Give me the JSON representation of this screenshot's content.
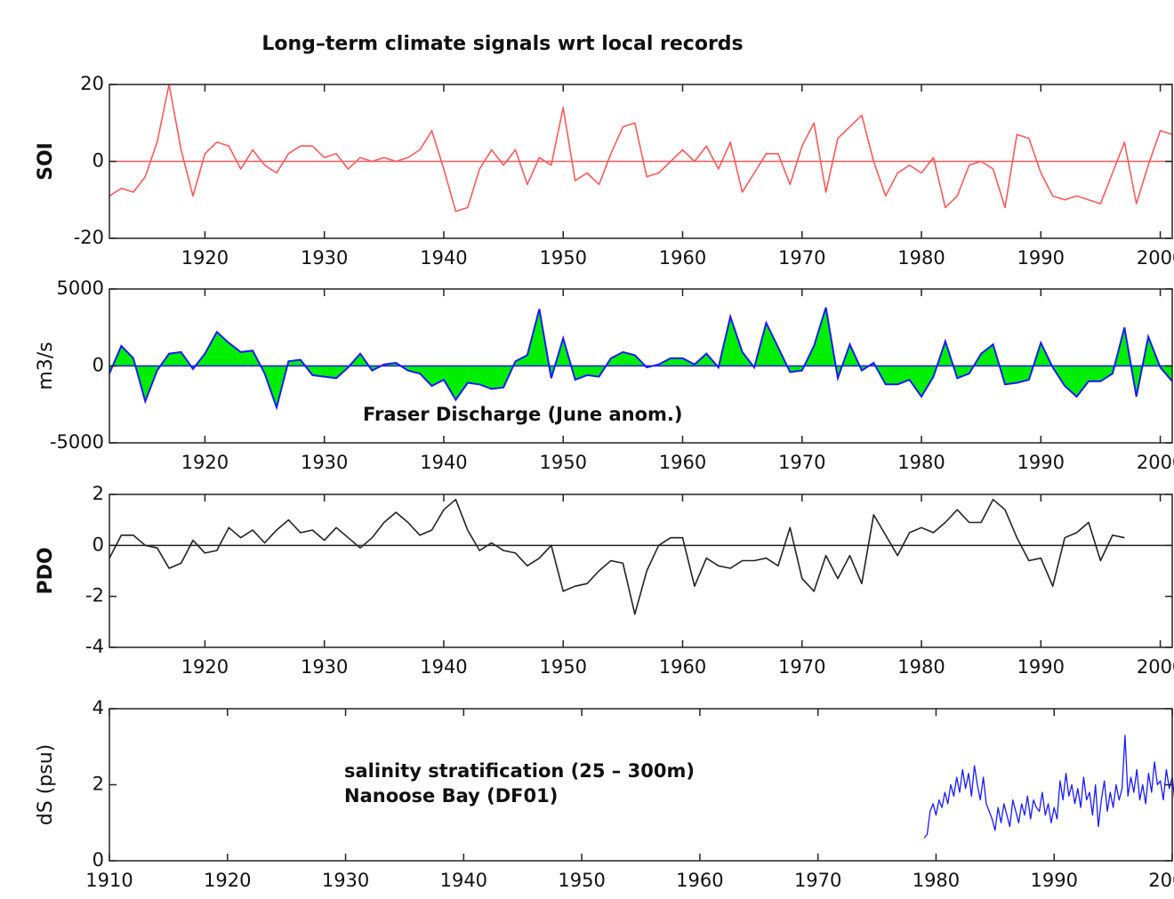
{
  "chart_data": [
    {
      "type": "line",
      "title": "Long–term climate signals wrt local records",
      "ylabel": "SOI",
      "color": "#ff5a5a",
      "zero_line": true,
      "x": [
        1912,
        1913,
        1914,
        1915,
        1916,
        1917,
        1918,
        1919,
        1920,
        1921,
        1922,
        1923,
        1924,
        1925,
        1926,
        1927,
        1928,
        1929,
        1930,
        1931,
        1932,
        1933,
        1934,
        1935,
        1936,
        1937,
        1938,
        1939,
        1940,
        1941,
        1942,
        1943,
        1944,
        1945,
        1946,
        1947,
        1948,
        1949,
        1950,
        1951,
        1952,
        1953,
        1954,
        1955,
        1956,
        1957,
        1958,
        1959,
        1960,
        1961,
        1962,
        1963,
        1964,
        1965,
        1966,
        1967,
        1968,
        1969,
        1970,
        1971,
        1972,
        1973,
        1974,
        1975,
        1976,
        1977,
        1978,
        1979,
        1980,
        1981,
        1982,
        1983,
        1984,
        1985,
        1986,
        1987,
        1988,
        1989,
        1990,
        1991,
        1992,
        1993,
        1994,
        1995,
        1996,
        1997,
        1998,
        1999,
        2000,
        2001
      ],
      "values": [
        -9,
        -7,
        -8,
        -4,
        5,
        20,
        3,
        -9,
        2,
        5,
        4,
        -2,
        3,
        -1,
        -3,
        2,
        4,
        4,
        1,
        2,
        -2,
        1,
        0,
        1,
        0,
        1,
        3,
        8,
        -2,
        -13,
        -12,
        -2,
        3,
        -1,
        3,
        -6,
        1,
        -1,
        14,
        -5,
        -3,
        -6,
        2,
        9,
        10,
        -4,
        -3,
        0,
        3,
        0,
        4,
        -2,
        5,
        -8,
        -3,
        2,
        2,
        -6,
        4,
        10,
        -8,
        6,
        9,
        12,
        0,
        -9,
        -3,
        -1,
        -3,
        1,
        -12,
        -9,
        -1,
        0,
        -2,
        -12,
        7,
        6,
        -3,
        -9,
        -10,
        -9,
        -10,
        -11,
        -3,
        5,
        -11,
        -1,
        8,
        7
      ],
      "xlim": [
        1912,
        2001
      ],
      "xticks": [
        1920,
        1930,
        1940,
        1950,
        1960,
        1970,
        1980,
        1990,
        2000
      ],
      "ylim": [
        -20,
        20
      ],
      "yticks": [
        -20,
        0,
        20
      ]
    },
    {
      "type": "area",
      "ylabel": "m3/s",
      "color": "#00ee00",
      "line_color": "#1a1aff",
      "annotations": [
        "Fraser Discharge (June anom.)"
      ],
      "x": [
        1912,
        1913,
        1914,
        1915,
        1916,
        1917,
        1918,
        1919,
        1920,
        1921,
        1922,
        1923,
        1924,
        1925,
        1926,
        1927,
        1928,
        1929,
        1930,
        1931,
        1932,
        1933,
        1934,
        1935,
        1936,
        1937,
        1938,
        1939,
        1940,
        1941,
        1942,
        1943,
        1944,
        1945,
        1946,
        1947,
        1948,
        1949,
        1950,
        1951,
        1952,
        1953,
        1954,
        1955,
        1956,
        1957,
        1958,
        1959,
        1960,
        1961,
        1962,
        1963,
        1964,
        1965,
        1966,
        1967,
        1968,
        1969,
        1970,
        1971,
        1972,
        1973,
        1974,
        1975,
        1976,
        1977,
        1978,
        1979,
        1980,
        1981,
        1982,
        1983,
        1984,
        1985,
        1986,
        1987,
        1988,
        1989,
        1990,
        1991,
        1992,
        1993,
        1994,
        1995,
        1996,
        1997,
        1998,
        1999,
        2000,
        2001
      ],
      "values": [
        -500,
        1300,
        500,
        -2300,
        -300,
        800,
        900,
        -200,
        800,
        2200,
        1500,
        900,
        1000,
        -500,
        -2700,
        300,
        400,
        -600,
        -700,
        -800,
        -100,
        800,
        -300,
        100,
        200,
        -300,
        -500,
        -1300,
        -900,
        -2200,
        -1100,
        -1200,
        -1500,
        -1400,
        300,
        700,
        3700,
        -800,
        1800,
        -900,
        -600,
        -700,
        500,
        900,
        700,
        -100,
        100,
        500,
        500,
        100,
        800,
        -100,
        3200,
        900,
        -100,
        2800,
        1200,
        -400,
        -300,
        1300,
        3800,
        -800,
        1400,
        -300,
        200,
        -1200,
        -1200,
        -900,
        -2000,
        -700,
        1600,
        -800,
        -500,
        800,
        1400,
        -1200,
        -1100,
        -900,
        1500,
        -100,
        -1300,
        -2000,
        -1000,
        -1000,
        -500,
        2500,
        -2000,
        1900,
        -100,
        -1000
      ],
      "xlim": [
        1912,
        2001
      ],
      "xticks": [
        1920,
        1930,
        1940,
        1950,
        1960,
        1970,
        1980,
        1990,
        2000
      ],
      "ylim": [
        -5000,
        5000
      ],
      "yticks": [
        -5000,
        0,
        5000
      ]
    },
    {
      "type": "line",
      "ylabel": "PDO",
      "color": "#222222",
      "zero_line": true,
      "x": [
        1912,
        1913,
        1914,
        1915,
        1916,
        1917,
        1918,
        1919,
        1920,
        1921,
        1922,
        1923,
        1924,
        1925,
        1926,
        1927,
        1928,
        1929,
        1930,
        1931,
        1932,
        1933,
        1934,
        1935,
        1936,
        1937,
        1938,
        1939,
        1940,
        1941,
        1942,
        1943,
        1944,
        1945,
        1946,
        1947,
        1948,
        1949,
        1950,
        1951,
        1952,
        1953,
        1954,
        1955,
        1956,
        1957,
        1958,
        1959,
        1960,
        1961,
        1962,
        1963,
        1964,
        1965,
        1966,
        1967,
        1968,
        1969,
        1970,
        1971,
        1972,
        1973,
        1974,
        1975,
        1976,
        1977,
        1978,
        1979,
        1980,
        1981,
        1982,
        1983,
        1984,
        1985,
        1986,
        1987,
        1988,
        1989,
        1990,
        1991,
        1992,
        1993,
        1994,
        1995,
        1996,
        1997
      ],
      "values": [
        -0.5,
        0.4,
        0.4,
        0,
        -0.1,
        -0.9,
        -0.7,
        0.2,
        -0.3,
        -0.2,
        0.7,
        0.3,
        0.6,
        0.1,
        0.6,
        1.0,
        0.5,
        0.6,
        0.2,
        0.7,
        0.3,
        -0.1,
        0.3,
        0.9,
        1.3,
        0.9,
        0.4,
        0.6,
        1.4,
        1.8,
        0.6,
        -0.2,
        0.1,
        -0.2,
        -0.3,
        -0.8,
        -0.5,
        0,
        -1.8,
        -1.6,
        -1.5,
        -1.0,
        -0.6,
        -0.7,
        -2.7,
        -1.0,
        0,
        0.3,
        0.3,
        -1.6,
        -0.5,
        -0.8,
        -0.9,
        -0.6,
        -0.6,
        -0.5,
        -0.8,
        0.7,
        -1.3,
        -1.8,
        -0.4,
        -1.3,
        -0.4,
        -1.5,
        1.2,
        0.4,
        -0.4,
        0.5,
        0.7,
        0.5,
        0.9,
        1.4,
        0.9,
        0.9,
        1.8,
        1.4,
        0.3,
        -0.6,
        -0.5,
        -1.6,
        0.3,
        0.5,
        0.9,
        -0.6,
        0.4,
        0.3
      ],
      "xlim": [
        1912,
        2001
      ],
      "xticks": [
        1920,
        1930,
        1940,
        1950,
        1960,
        1970,
        1980,
        1990,
        2000
      ],
      "ylim": [
        -4,
        2
      ],
      "yticks": [
        -4,
        -2,
        0,
        2
      ]
    },
    {
      "type": "line",
      "ylabel": "dS (psu)",
      "color": "#1a1aff",
      "annotations": [
        "salinity stratification (25 – 300m)",
        "Nanoose Bay (DF01)"
      ],
      "x": [
        1979,
        1979.25,
        1979.5,
        1979.75,
        1980,
        1980.25,
        1980.5,
        1980.75,
        1981,
        1981.25,
        1981.5,
        1981.75,
        1982,
        1982.25,
        1982.5,
        1982.75,
        1983,
        1983.25,
        1983.5,
        1983.75,
        1984,
        1984.25,
        1984.5,
        1984.75,
        1985,
        1985.25,
        1985.5,
        1985.75,
        1986,
        1986.25,
        1986.5,
        1986.75,
        1987,
        1987.25,
        1987.5,
        1987.75,
        1988,
        1988.25,
        1988.5,
        1988.75,
        1989,
        1989.25,
        1989.5,
        1989.75,
        1990,
        1990.25,
        1990.5,
        1990.75,
        1991,
        1991.25,
        1991.5,
        1991.75,
        1992,
        1992.25,
        1992.5,
        1992.75,
        1993,
        1993.25,
        1993.5,
        1993.75,
        1994,
        1994.25,
        1994.5,
        1994.75,
        1995,
        1995.25,
        1995.5,
        1995.75,
        1996,
        1996.25,
        1996.5,
        1996.75,
        1997,
        1997.25,
        1997.5,
        1997.75,
        1998,
        1998.25,
        1998.5,
        1998.75,
        1999,
        1999.25,
        1999.5,
        1999.75,
        2000,
        2000.25,
        2000.5,
        2000.75,
        2001
      ],
      "values": [
        0.6,
        0.7,
        1.3,
        1.5,
        1.2,
        1.6,
        1.4,
        1.8,
        1.5,
        2.0,
        1.7,
        2.2,
        1.8,
        2.4,
        1.9,
        2.3,
        1.7,
        2.5,
        2.0,
        1.6,
        2.2,
        1.5,
        1.3,
        1.1,
        0.8,
        1.4,
        1.0,
        1.5,
        1.2,
        0.9,
        1.6,
        1.3,
        1.0,
        1.5,
        1.2,
        1.7,
        1.1,
        1.6,
        1.4,
        1.3,
        1.8,
        1.2,
        1.5,
        1.0,
        1.4,
        1.1,
        2.1,
        1.6,
        2.3,
        1.7,
        2.0,
        1.5,
        1.9,
        1.4,
        2.2,
        1.6,
        1.8,
        1.2,
        2.0,
        0.9,
        1.6,
        2.1,
        1.3,
        1.8,
        1.4,
        2.0,
        1.6,
        1.9,
        3.3,
        1.7,
        2.2,
        1.8,
        2.4,
        1.6,
        2.0,
        1.5,
        2.3,
        1.8,
        2.6,
        2.0,
        2.1,
        1.6,
        2.4,
        1.9,
        2.2,
        1.5,
        1.9,
        1.3,
        1.6
      ],
      "xlim": [
        1910,
        2000
      ],
      "xticks": [
        1910,
        1920,
        1930,
        1940,
        1950,
        1960,
        1970,
        1980,
        1990,
        2000
      ],
      "ylim": [
        0,
        4
      ],
      "yticks": [
        0,
        2,
        4
      ]
    }
  ]
}
